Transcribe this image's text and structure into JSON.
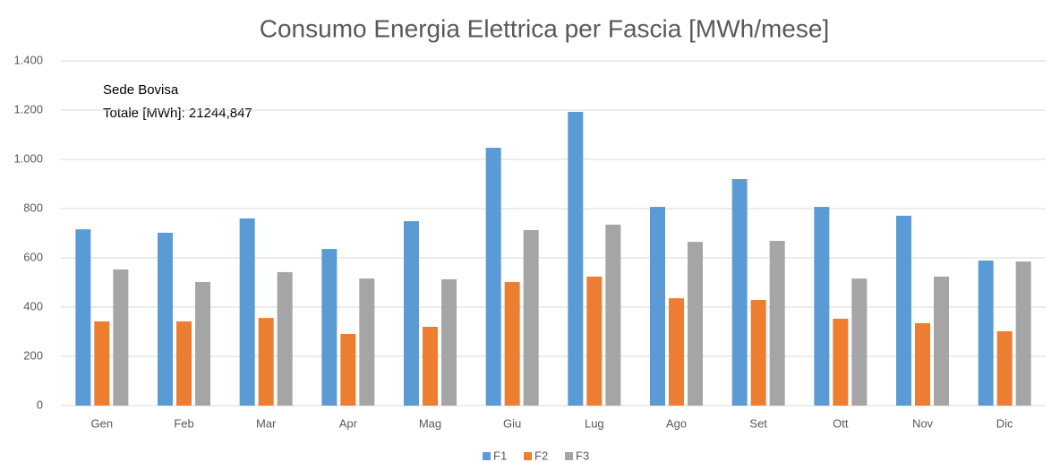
{
  "chart_data": {
    "type": "bar",
    "title": "Consumo Energia Elettrica per Fascia [MWh/mese]",
    "annotations": [
      "Sede Bovisa",
      "Totale [MWh]: 21244,847"
    ],
    "categories": [
      "Gen",
      "Feb",
      "Mar",
      "Apr",
      "Mag",
      "Giu",
      "Lug",
      "Ago",
      "Set",
      "Ott",
      "Nov",
      "Dic"
    ],
    "series": [
      {
        "name": "F1",
        "color": "#5b9bd5",
        "values": [
          716,
          702,
          760,
          636,
          749,
          1047,
          1193,
          807,
          920,
          807,
          771,
          589
        ]
      },
      {
        "name": "F2",
        "color": "#ed7d31",
        "values": [
          342,
          342,
          356,
          291,
          320,
          502,
          524,
          436,
          429,
          353,
          335,
          302
        ]
      },
      {
        "name": "F3",
        "color": "#a5a5a5",
        "values": [
          553,
          502,
          542,
          516,
          513,
          713,
          735,
          665,
          669,
          516,
          524,
          585
        ]
      }
    ],
    "ylim": [
      0,
      1400
    ],
    "yticks": [
      0,
      200,
      400,
      600,
      800,
      {
        "value": 1000,
        "label": "1.000"
      },
      {
        "value": 1200,
        "label": "1.200"
      },
      {
        "value": 1400,
        "label": "1.400"
      }
    ],
    "grid": true,
    "legend": "bottom"
  }
}
